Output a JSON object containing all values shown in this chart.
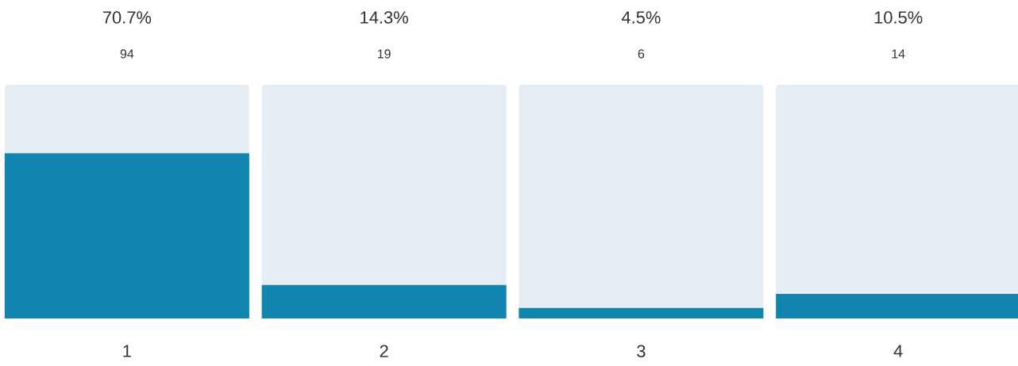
{
  "chart_data": {
    "type": "bar",
    "categories": [
      "1",
      "2",
      "3",
      "4"
    ],
    "series": [
      {
        "color": "#1185b0",
        "values": [
          70.7,
          14.3,
          4.5,
          10.5
        ],
        "value_labels": [
          "70.7%",
          "14.3%",
          "4.5%",
          "10.5%"
        ]
      }
    ],
    "ylim": [
      0,
      100
    ],
    "tick_labels": "x",
    "annotations": [
      "94",
      "19",
      "6",
      "14"
    ]
  }
}
